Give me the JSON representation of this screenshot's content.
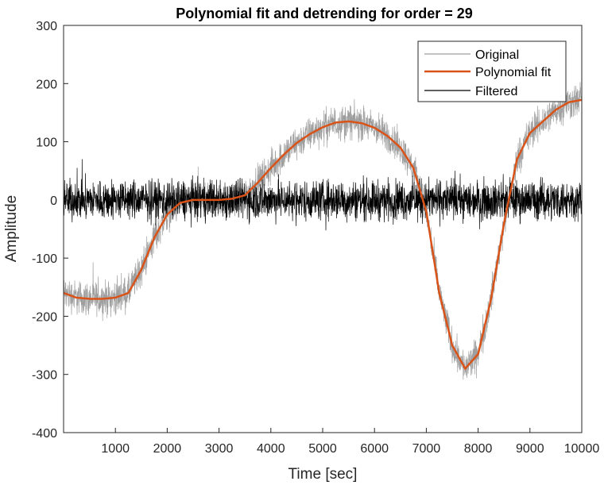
{
  "chart_data": {
    "type": "line",
    "title": "Polynomial fit and detrending for order = 29",
    "xlabel": "Time [sec]",
    "ylabel": "Amplitude",
    "xlim": [
      0,
      10000
    ],
    "ylim": [
      -400,
      300
    ],
    "x_ticks": [
      1000,
      2000,
      3000,
      4000,
      5000,
      6000,
      7000,
      8000,
      9000,
      10000
    ],
    "y_ticks": [
      -400,
      -300,
      -200,
      -100,
      0,
      100,
      200,
      300
    ],
    "grid": false,
    "legend_position": "top-right",
    "x": [
      0,
      250,
      500,
      750,
      1000,
      1250,
      1500,
      1750,
      2000,
      2250,
      2500,
      2750,
      3000,
      3250,
      3500,
      3750,
      4000,
      4250,
      4500,
      4750,
      5000,
      5250,
      5500,
      5750,
      6000,
      6250,
      6500,
      6750,
      7000,
      7250,
      7500,
      7750,
      8000,
      8250,
      8500,
      8750,
      9000,
      9250,
      9500,
      9750,
      10000
    ],
    "series": [
      {
        "name": "Original",
        "color": "#9e9e9e",
        "values": [
          -160,
          -168,
          -170,
          -170,
          -168,
          -160,
          -120,
          -65,
          -25,
          -5,
          0,
          0,
          0,
          2,
          8,
          30,
          55,
          78,
          98,
          113,
          125,
          133,
          135,
          132,
          124,
          110,
          90,
          55,
          -20,
          -160,
          -250,
          -290,
          -265,
          -170,
          -40,
          70,
          115,
          135,
          155,
          168,
          172
        ],
        "noise_amplitude": 30
      },
      {
        "name": "Polynomial fit",
        "color": "#d95319",
        "values": [
          -160,
          -168,
          -170,
          -170,
          -168,
          -160,
          -120,
          -65,
          -25,
          -5,
          0,
          0,
          0,
          2,
          8,
          30,
          55,
          78,
          98,
          113,
          125,
          133,
          135,
          132,
          124,
          110,
          90,
          55,
          -20,
          -160,
          -250,
          -290,
          -265,
          -170,
          -40,
          70,
          115,
          135,
          155,
          168,
          172
        ]
      },
      {
        "name": "Filtered",
        "color": "#000000",
        "description_values": "zero-mean noise",
        "values": [
          0,
          0,
          0,
          0,
          0,
          0,
          0,
          0,
          0,
          0,
          0,
          0,
          0,
          0,
          0,
          0,
          0,
          0,
          0,
          0,
          0,
          0,
          0,
          0,
          0,
          0,
          0,
          0,
          0,
          0,
          0,
          0,
          0,
          0,
          0,
          0,
          0,
          0,
          0,
          0,
          0
        ],
        "noise_amplitude": 35
      }
    ]
  }
}
